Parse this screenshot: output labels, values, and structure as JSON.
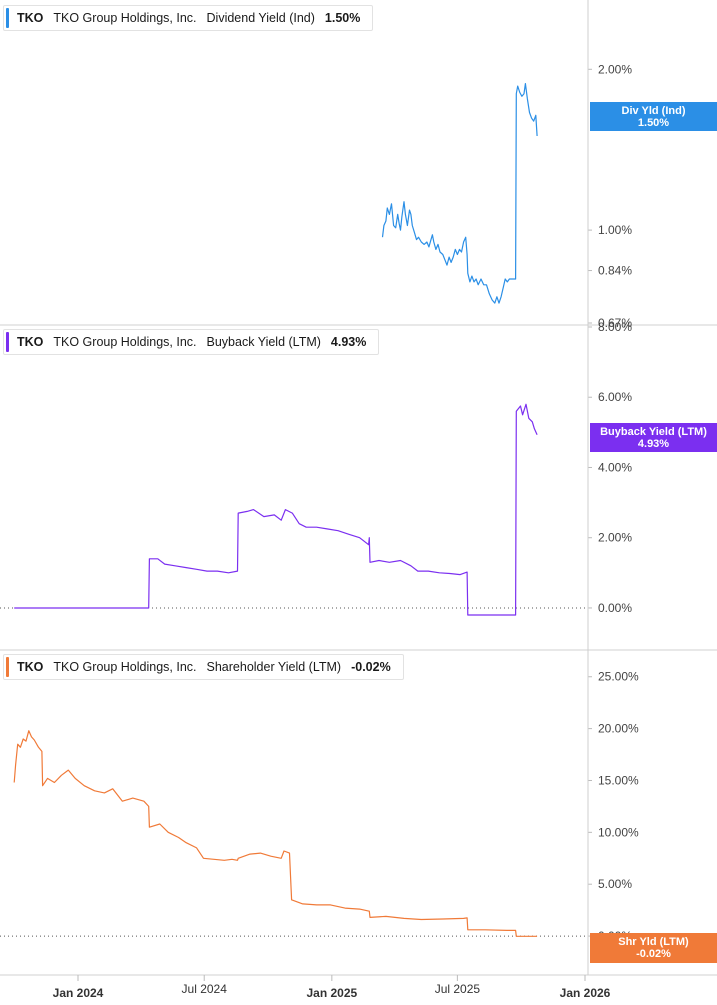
{
  "chart_data": [
    {
      "type": "line",
      "ticker": "TKO",
      "company": "TKO Group Holdings, Inc.",
      "metric": "Dividend Yield (Ind)",
      "current_value": "1.50%",
      "flag_label": "Div Yld (Ind)",
      "flag_value": "1.50%",
      "color": "#2b8fe6",
      "y_scale": "log",
      "ylim": [
        0.67,
        2.4
      ],
      "y_ticks": [
        "2.00%",
        "1.00%",
        "0.84%",
        "0.67%"
      ],
      "y_tick_values": [
        2.0,
        1.0,
        0.84,
        0.67
      ],
      "zero_line": false,
      "points": [
        [
          "2025-03-15",
          0.97
        ],
        [
          "2025-03-17",
          1.02
        ],
        [
          "2025-03-20",
          1.04
        ],
        [
          "2025-03-22",
          1.1
        ],
        [
          "2025-03-25",
          1.07
        ],
        [
          "2025-03-28",
          1.12
        ],
        [
          "2025-03-31",
          1.02
        ],
        [
          "2025-04-03",
          1.01
        ],
        [
          "2025-04-06",
          1.07
        ],
        [
          "2025-04-08",
          1.03
        ],
        [
          "2025-04-10",
          1.0
        ],
        [
          "2025-04-12",
          1.06
        ],
        [
          "2025-04-15",
          1.13
        ],
        [
          "2025-04-17",
          1.07
        ],
        [
          "2025-04-20",
          1.02
        ],
        [
          "2025-04-23",
          1.09
        ],
        [
          "2025-04-25",
          1.07
        ],
        [
          "2025-04-27",
          1.02
        ],
        [
          "2025-04-30",
          0.99
        ],
        [
          "2025-05-03",
          0.96
        ],
        [
          "2025-05-06",
          0.97
        ],
        [
          "2025-05-10",
          0.95
        ],
        [
          "2025-05-14",
          0.94
        ],
        [
          "2025-05-18",
          0.95
        ],
        [
          "2025-05-21",
          0.93
        ],
        [
          "2025-05-24",
          0.96
        ],
        [
          "2025-05-26",
          0.98
        ],
        [
          "2025-05-28",
          0.95
        ],
        [
          "2025-05-31",
          0.92
        ],
        [
          "2025-06-03",
          0.94
        ],
        [
          "2025-06-06",
          0.91
        ],
        [
          "2025-06-10",
          0.9
        ],
        [
          "2025-06-13",
          0.88
        ],
        [
          "2025-06-16",
          0.86
        ],
        [
          "2025-06-19",
          0.89
        ],
        [
          "2025-06-22",
          0.87
        ],
        [
          "2025-06-25",
          0.89
        ],
        [
          "2025-06-28",
          0.92
        ],
        [
          "2025-07-01",
          0.9
        ],
        [
          "2025-07-04",
          0.92
        ],
        [
          "2025-07-07",
          0.91
        ],
        [
          "2025-07-10",
          0.95
        ],
        [
          "2025-07-13",
          0.97
        ],
        [
          "2025-07-15",
          0.9
        ],
        [
          "2025-07-16",
          0.83
        ],
        [
          "2025-07-19",
          0.8
        ],
        [
          "2025-07-22",
          0.82
        ],
        [
          "2025-07-25",
          0.8
        ],
        [
          "2025-07-28",
          0.81
        ],
        [
          "2025-07-31",
          0.79
        ],
        [
          "2025-08-04",
          0.81
        ],
        [
          "2025-08-08",
          0.79
        ],
        [
          "2025-08-12",
          0.79
        ],
        [
          "2025-08-16",
          0.76
        ],
        [
          "2025-08-20",
          0.74
        ],
        [
          "2025-08-24",
          0.73
        ],
        [
          "2025-08-27",
          0.75
        ],
        [
          "2025-08-30",
          0.73
        ],
        [
          "2025-09-02",
          0.75
        ],
        [
          "2025-09-05",
          0.78
        ],
        [
          "2025-09-08",
          0.81
        ],
        [
          "2025-09-11",
          0.8
        ],
        [
          "2025-09-14",
          0.81
        ],
        [
          "2025-09-17",
          0.81
        ],
        [
          "2025-09-20",
          0.81
        ],
        [
          "2025-09-23",
          0.81
        ],
        [
          "2025-09-24",
          1.8
        ],
        [
          "2025-09-26",
          1.86
        ],
        [
          "2025-09-29",
          1.81
        ],
        [
          "2025-10-02",
          1.78
        ],
        [
          "2025-10-05",
          1.8
        ],
        [
          "2025-10-07",
          1.88
        ],
        [
          "2025-10-10",
          1.76
        ],
        [
          "2025-10-13",
          1.66
        ],
        [
          "2025-10-16",
          1.62
        ],
        [
          "2025-10-19",
          1.6
        ],
        [
          "2025-10-22",
          1.64
        ],
        [
          "2025-10-24",
          1.5
        ]
      ]
    },
    {
      "type": "line",
      "ticker": "TKO",
      "company": "TKO Group Holdings, Inc.",
      "metric": "Buyback Yield (LTM)",
      "current_value": "4.93%",
      "flag_label": "Buyback Yield (LTM)",
      "flag_value": "4.93%",
      "color": "#7b2ff0",
      "y_scale": "linear",
      "ylim": [
        -0.4,
        8.0
      ],
      "y_ticks": [
        "8.00%",
        "6.00%",
        "4.00%",
        "2.00%",
        "0.00%"
      ],
      "y_tick_values": [
        8,
        6,
        4,
        2,
        0
      ],
      "zero_line": true,
      "points": [
        [
          "2023-10-01",
          0.0
        ],
        [
          "2024-04-12",
          0.0
        ],
        [
          "2024-04-13",
          1.4
        ],
        [
          "2024-04-25",
          1.4
        ],
        [
          "2024-05-05",
          1.25
        ],
        [
          "2024-05-20",
          1.2
        ],
        [
          "2024-06-05",
          1.15
        ],
        [
          "2024-06-20",
          1.1
        ],
        [
          "2024-07-05",
          1.05
        ],
        [
          "2024-07-20",
          1.05
        ],
        [
          "2024-08-05",
          1.0
        ],
        [
          "2024-08-18",
          1.05
        ],
        [
          "2024-08-19",
          2.7
        ],
        [
          "2024-09-01",
          2.75
        ],
        [
          "2024-09-10",
          2.8
        ],
        [
          "2024-09-25",
          2.6
        ],
        [
          "2024-10-10",
          2.65
        ],
        [
          "2024-10-20",
          2.5
        ],
        [
          "2024-10-26",
          2.8
        ],
        [
          "2024-11-05",
          2.7
        ],
        [
          "2024-11-15",
          2.4
        ],
        [
          "2024-11-25",
          2.3
        ],
        [
          "2024-12-10",
          2.3
        ],
        [
          "2024-12-25",
          2.25
        ],
        [
          "2025-01-10",
          2.2
        ],
        [
          "2025-01-25",
          2.1
        ],
        [
          "2025-02-10",
          2.0
        ],
        [
          "2025-02-23",
          1.8
        ],
        [
          "2025-02-24",
          2.0
        ],
        [
          "2025-02-25",
          1.3
        ],
        [
          "2025-03-10",
          1.35
        ],
        [
          "2025-03-25",
          1.3
        ],
        [
          "2025-04-10",
          1.35
        ],
        [
          "2025-04-25",
          1.2
        ],
        [
          "2025-05-05",
          1.05
        ],
        [
          "2025-05-20",
          1.05
        ],
        [
          "2025-06-05",
          1.0
        ],
        [
          "2025-06-20",
          0.98
        ],
        [
          "2025-07-05",
          0.95
        ],
        [
          "2025-07-15",
          1.02
        ],
        [
          "2025-07-16",
          -0.2
        ],
        [
          "2025-08-10",
          -0.2
        ],
        [
          "2025-09-05",
          -0.2
        ],
        [
          "2025-09-23",
          -0.2
        ],
        [
          "2025-09-24",
          5.6
        ],
        [
          "2025-09-30",
          5.75
        ],
        [
          "2025-10-03",
          5.5
        ],
        [
          "2025-10-08",
          5.8
        ],
        [
          "2025-10-12",
          5.4
        ],
        [
          "2025-10-17",
          5.3
        ],
        [
          "2025-10-20",
          5.1
        ],
        [
          "2025-10-24",
          4.93
        ]
      ]
    },
    {
      "type": "line",
      "ticker": "TKO",
      "company": "TKO Group Holdings, Inc.",
      "metric": "Shareholder Yield (LTM)",
      "current_value": "-0.02%",
      "flag_label": "Shr Yld (LTM)",
      "flag_value": "-0.02%",
      "color": "#f07a38",
      "y_scale": "linear",
      "ylim": [
        -2.5,
        27.0
      ],
      "y_ticks": [
        "25.00%",
        "20.00%",
        "15.00%",
        "10.00%",
        "5.00%",
        "0.00%"
      ],
      "y_tick_values": [
        25,
        20,
        15,
        10,
        5,
        0
      ],
      "zero_line": true,
      "points": [
        [
          "2023-10-01",
          14.8
        ],
        [
          "2023-10-03",
          16.5
        ],
        [
          "2023-10-06",
          18.5
        ],
        [
          "2023-10-10",
          18.2
        ],
        [
          "2023-10-14",
          19.0
        ],
        [
          "2023-10-18",
          18.8
        ],
        [
          "2023-10-22",
          19.8
        ],
        [
          "2023-10-26",
          19.2
        ],
        [
          "2023-10-30",
          18.9
        ],
        [
          "2023-11-05",
          18.2
        ],
        [
          "2023-11-10",
          17.8
        ],
        [
          "2023-11-11",
          14.5
        ],
        [
          "2023-11-18",
          15.2
        ],
        [
          "2023-11-28",
          14.8
        ],
        [
          "2023-12-08",
          15.5
        ],
        [
          "2023-12-18",
          16.0
        ],
        [
          "2023-12-28",
          15.2
        ],
        [
          "2024-01-10",
          14.5
        ],
        [
          "2024-01-25",
          14.0
        ],
        [
          "2024-02-08",
          13.8
        ],
        [
          "2024-02-20",
          14.2
        ],
        [
          "2024-03-05",
          13.0
        ],
        [
          "2024-03-20",
          13.3
        ],
        [
          "2024-04-05",
          13.0
        ],
        [
          "2024-04-12",
          12.5
        ],
        [
          "2024-04-13",
          10.5
        ],
        [
          "2024-04-28",
          10.8
        ],
        [
          "2024-05-10",
          10.0
        ],
        [
          "2024-05-25",
          9.5
        ],
        [
          "2024-06-05",
          9.0
        ],
        [
          "2024-06-20",
          8.5
        ],
        [
          "2024-06-30",
          7.5
        ],
        [
          "2024-07-15",
          7.4
        ],
        [
          "2024-07-30",
          7.3
        ],
        [
          "2024-08-10",
          7.4
        ],
        [
          "2024-08-18",
          7.3
        ],
        [
          "2024-08-19",
          7.5
        ],
        [
          "2024-09-05",
          7.9
        ],
        [
          "2024-09-20",
          8.0
        ],
        [
          "2024-10-05",
          7.7
        ],
        [
          "2024-10-20",
          7.5
        ],
        [
          "2024-10-24",
          8.2
        ],
        [
          "2024-11-01",
          8.0
        ],
        [
          "2024-11-04",
          3.5
        ],
        [
          "2024-11-20",
          3.1
        ],
        [
          "2024-12-10",
          3.0
        ],
        [
          "2024-12-30",
          3.0
        ],
        [
          "2025-01-20",
          2.7
        ],
        [
          "2025-02-10",
          2.6
        ],
        [
          "2025-02-24",
          2.4
        ],
        [
          "2025-02-25",
          1.8
        ],
        [
          "2025-03-20",
          1.9
        ],
        [
          "2025-04-15",
          1.7
        ],
        [
          "2025-05-10",
          1.6
        ],
        [
          "2025-06-10",
          1.65
        ],
        [
          "2025-07-10",
          1.7
        ],
        [
          "2025-07-15",
          1.75
        ],
        [
          "2025-07-16",
          0.6
        ],
        [
          "2025-08-10",
          0.6
        ],
        [
          "2025-09-10",
          0.55
        ],
        [
          "2025-09-23",
          0.55
        ],
        [
          "2025-09-24",
          -0.02
        ],
        [
          "2025-10-24",
          -0.02
        ]
      ]
    }
  ],
  "x_axis": {
    "labels": [
      {
        "text": "Jan 2024",
        "date": "2024-01-01",
        "major": true
      },
      {
        "text": "Jul 2024",
        "date": "2024-07-01",
        "major": false
      },
      {
        "text": "Jan 2025",
        "date": "2025-01-01",
        "major": true
      },
      {
        "text": "Jul 2025",
        "date": "2025-07-01",
        "major": false
      },
      {
        "text": "Jan 2026",
        "date": "2026-01-01",
        "major": true
      }
    ]
  }
}
